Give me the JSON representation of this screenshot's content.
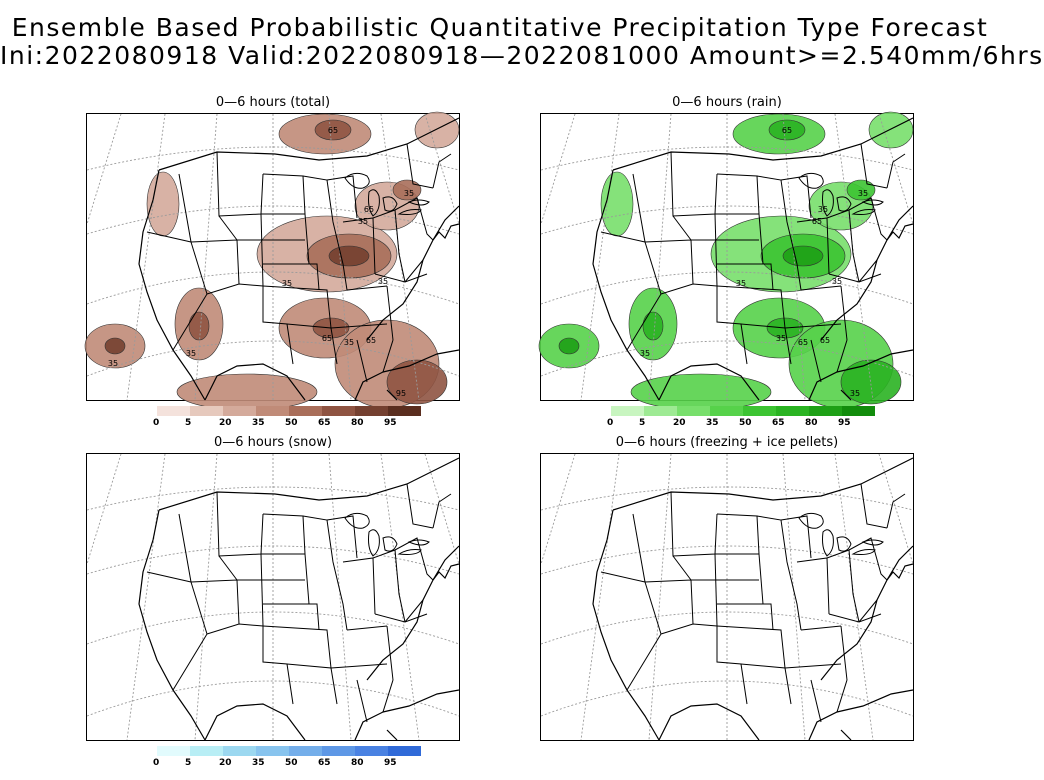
{
  "header": {
    "title_line1": "Ensemble Based Probabilistic Quantitative Precipitation Type Forecast",
    "title_line2": "Ini:2022080918 Valid:2022080918—2022081000 Amount>=2.540mm/6hrs"
  },
  "panels": {
    "total": {
      "title": "0—6 hours (total)",
      "contour_labels": [
        "65",
        "35",
        "65",
        "35",
        "35",
        "35",
        "65",
        "35",
        "65",
        "35",
        "95",
        "35"
      ]
    },
    "rain": {
      "title": "0—6 hours (rain)",
      "contour_labels": [
        "65",
        "35",
        "35",
        "65",
        "35",
        "35",
        "35",
        "65",
        "65",
        "35",
        "35"
      ]
    },
    "snow": {
      "title": "0—6 hours (snow)"
    },
    "freezing": {
      "title": "0—6 hours (freezing + ice pellets)"
    }
  },
  "colorbars": {
    "ticks": [
      "0",
      "5",
      "20",
      "35",
      "50",
      "65",
      "80",
      "95"
    ],
    "brown": [
      "#f4e2dc",
      "#e6c9bd",
      "#d4aa9b",
      "#c08b78",
      "#a96e5a",
      "#8f5442",
      "#744030",
      "#5a2e1f"
    ],
    "green": [
      "#c8f5c0",
      "#9eea94",
      "#78df6c",
      "#56d24a",
      "#3cc432",
      "#2ab322",
      "#1ea016",
      "#128c0c"
    ],
    "blue": [
      "#e2fbfd",
      "#b8eef5",
      "#9cd8f0",
      "#88c4ee",
      "#74aeea",
      "#5e98e6",
      "#4a82e2",
      "#306ad8"
    ]
  },
  "legend": {
    "colorbar_palettes": [
      "brown",
      "green",
      "blue"
    ]
  }
}
